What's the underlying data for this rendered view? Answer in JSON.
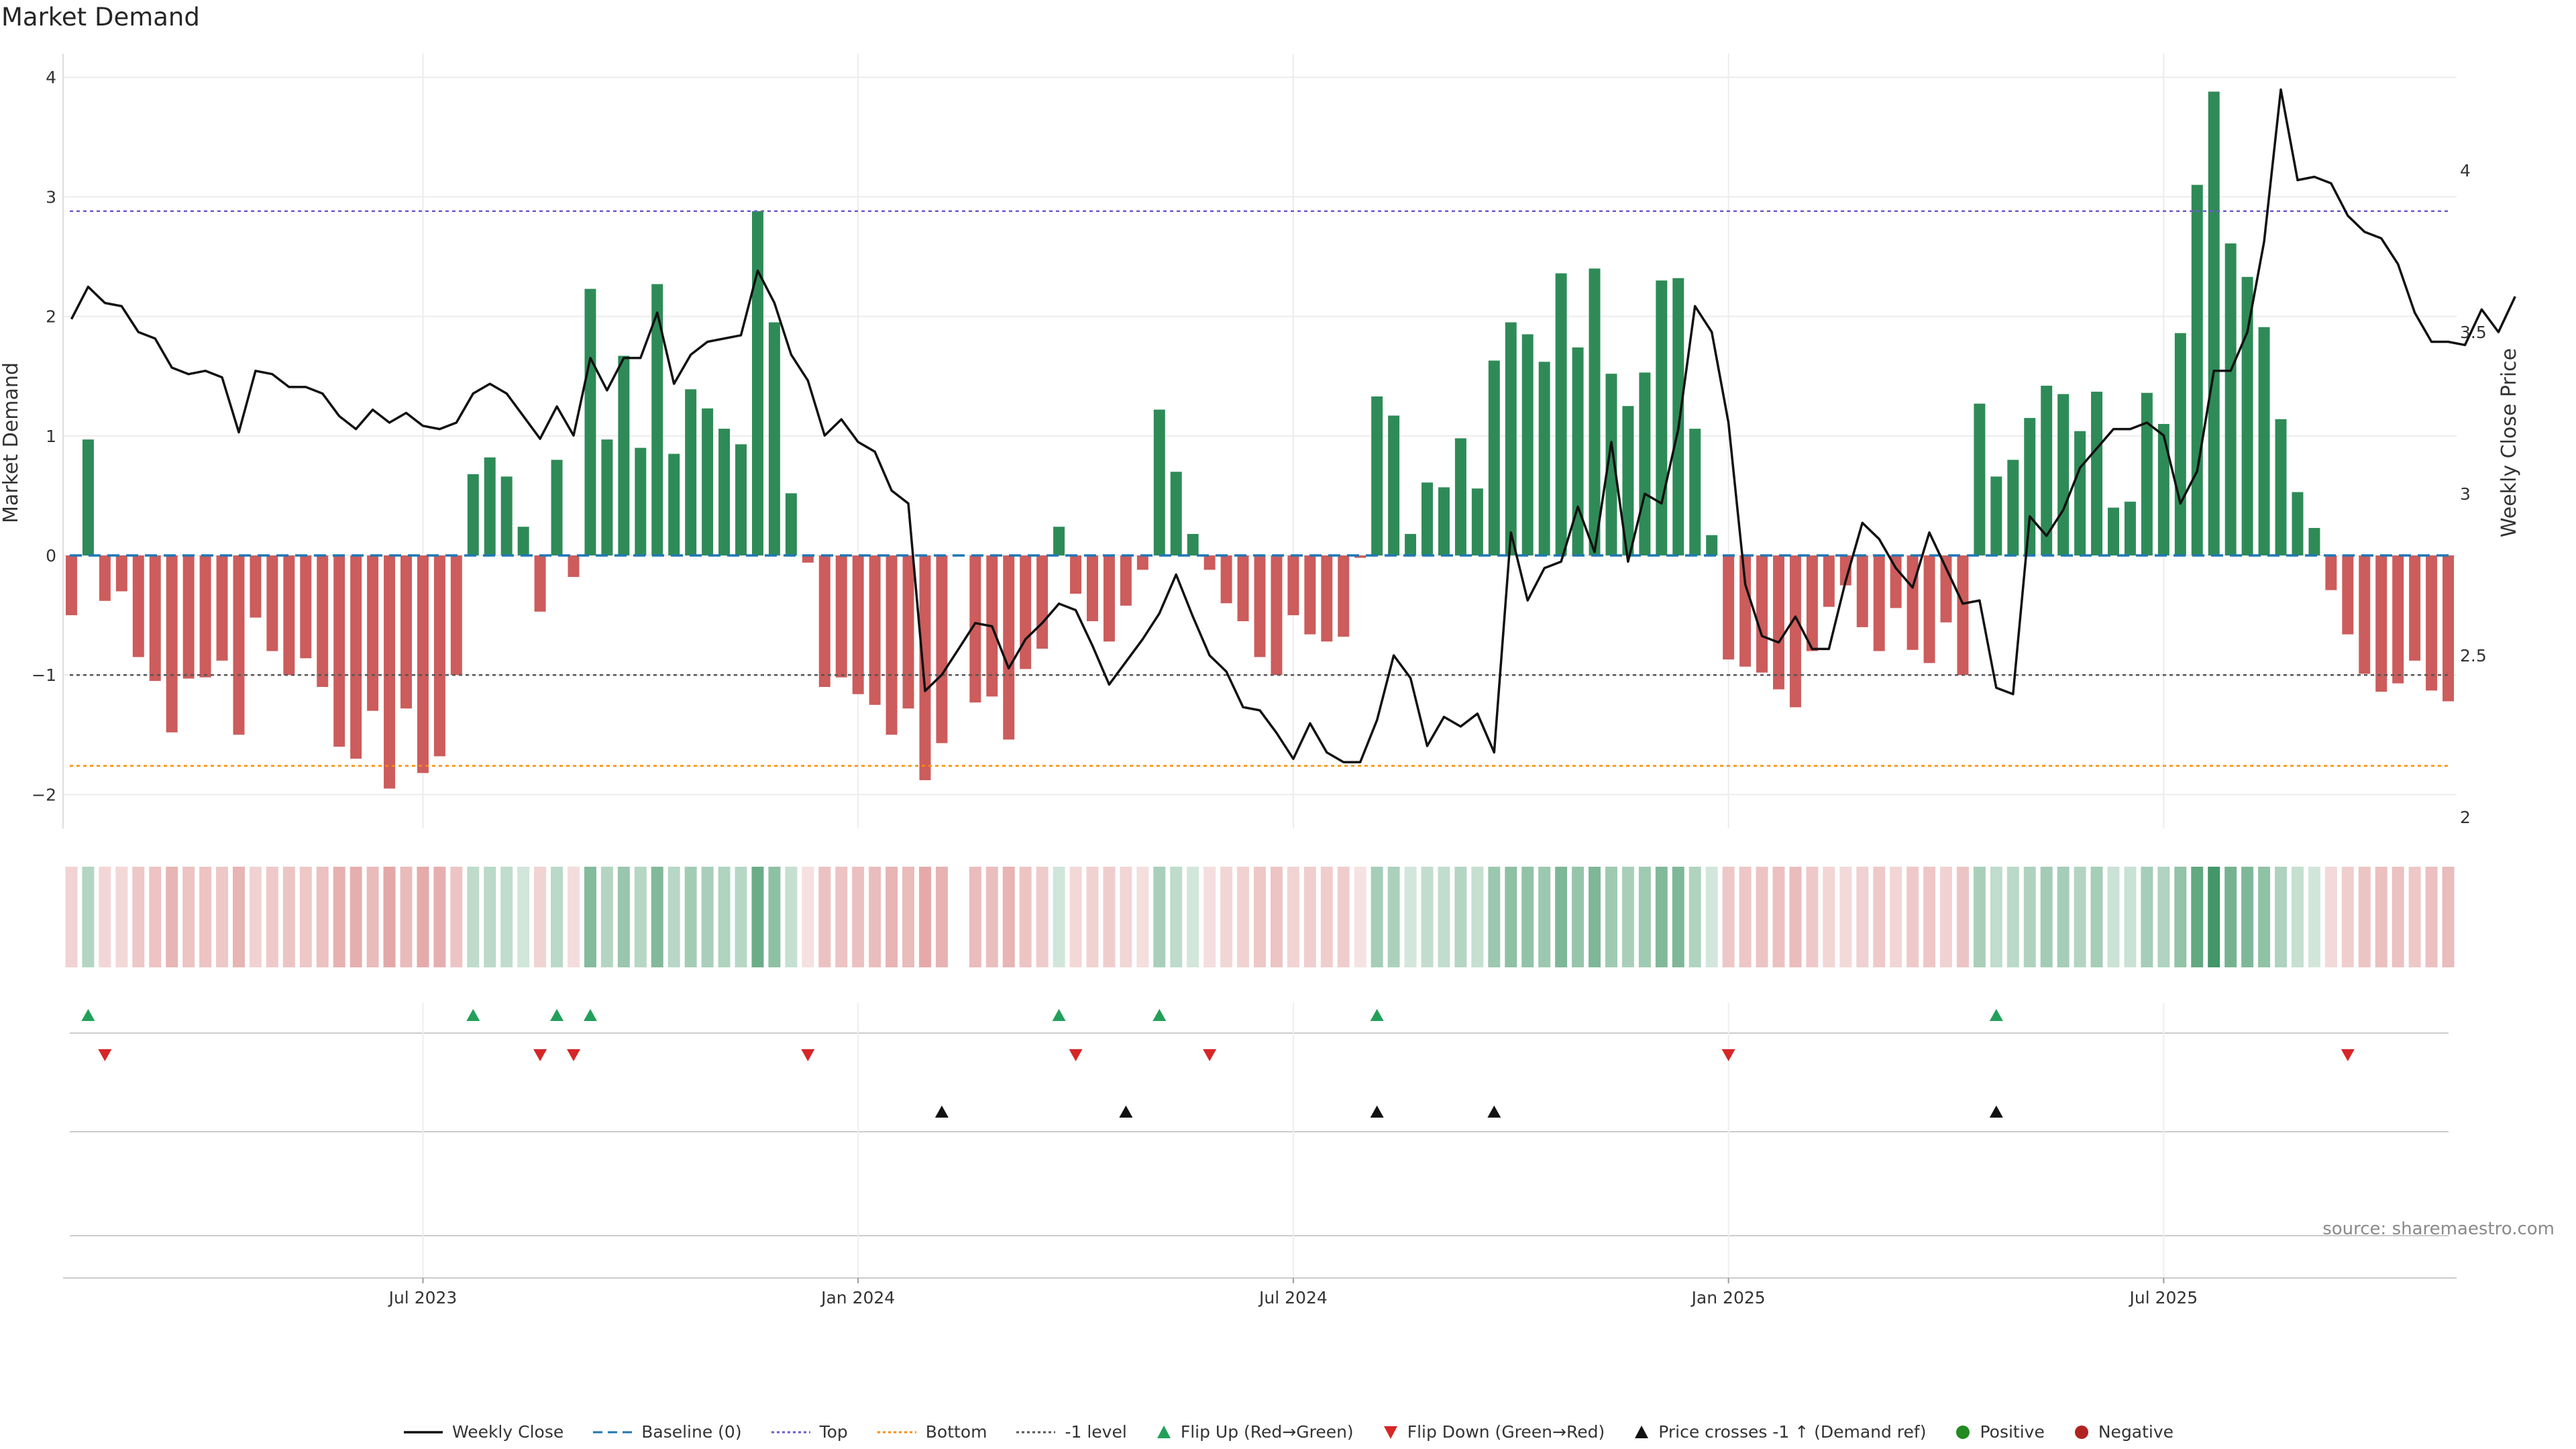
{
  "title": "Market Demand",
  "source": "source: sharemaestro.com",
  "colors": {
    "positive": "#2e8b57",
    "negative": "#cd5c5c",
    "price": "#111111",
    "baseline": "#1f77b4",
    "top": "#6a5acd",
    "bottom": "#ff8c00",
    "minus1": "#555555",
    "flip_up": "#22a05a",
    "flip_down": "#d62728",
    "cross": "#111111",
    "pos_dot": "#228b22",
    "neg_dot": "#b22222"
  },
  "chart_data": {
    "type": "bar",
    "title": "Market Demand",
    "ylabel": "Market Demand",
    "y2label": "Weekly Close Price",
    "ylim": [
      -2.2,
      4.15
    ],
    "y2lim": [
      1.97,
      4.32
    ],
    "yticks": [
      "4",
      "3",
      "2",
      "1",
      "0",
      "−1",
      "−2"
    ],
    "y2ticks": [
      "4",
      "3.5",
      "3",
      "2.5",
      "2"
    ],
    "xticks": [
      "Jul 2023",
      "Jan 2024",
      "Jul 2024",
      "Jan 2025",
      "Jul 2025"
    ],
    "xtick_index": [
      21,
      47,
      73,
      99,
      125
    ],
    "reference_lines": {
      "top": 2.88,
      "bottom": -1.76,
      "minus_one": -1,
      "baseline": 0
    },
    "demand": [
      -0.5,
      0.97,
      -0.38,
      -0.3,
      -0.85,
      -1.05,
      -1.48,
      -1.03,
      -1.02,
      -0.88,
      -1.5,
      -0.52,
      -0.8,
      -1.0,
      -0.86,
      -1.1,
      -1.6,
      -1.7,
      -1.3,
      -1.95,
      -1.28,
      -1.82,
      -1.68,
      -1.0,
      0.68,
      0.82,
      0.66,
      0.24,
      -0.47,
      0.8,
      -0.18,
      2.23,
      0.97,
      1.67,
      0.9,
      2.27,
      0.85,
      1.39,
      1.23,
      1.06,
      0.93,
      2.88,
      1.95,
      0.52,
      -0.06,
      -1.1,
      -1.02,
      -1.16,
      -1.25,
      -1.5,
      -1.28,
      -1.88,
      -1.57,
      0,
      -1.23,
      -1.18,
      -1.54,
      -0.95,
      -0.78,
      0.24,
      -0.32,
      -0.55,
      -0.72,
      -0.42,
      -0.12,
      1.22,
      0.7,
      0.18,
      -0.12,
      -0.4,
      -0.55,
      -0.85,
      -1.0,
      -0.5,
      -0.66,
      -0.72,
      -0.68,
      -0.02,
      1.33,
      1.17,
      0.18,
      0.61,
      0.57,
      0.98,
      0.56,
      1.63,
      1.95,
      1.85,
      1.62,
      2.36,
      1.74,
      2.4,
      1.52,
      1.25,
      1.53,
      2.3,
      2.32,
      1.06,
      0.17,
      -0.87,
      -0.93,
      -0.98,
      -1.12,
      -1.27,
      -0.8,
      -0.43,
      -0.25,
      -0.6,
      -0.8,
      -0.44,
      -0.79,
      -0.9,
      -0.56,
      -1.0,
      1.27,
      0.66,
      0.8,
      1.15,
      1.42,
      1.35,
      1.04,
      1.37,
      0.4,
      0.45,
      1.36,
      1.1,
      1.86,
      3.1,
      3.88,
      2.61,
      2.33,
      1.91,
      1.14,
      0.53,
      0.23,
      -0.29,
      -0.66,
      -0.99,
      -1.14,
      -1.07,
      -0.88,
      -1.13,
      -1.22
    ],
    "price": [
      3.54,
      3.64,
      3.59,
      3.58,
      3.5,
      3.48,
      3.39,
      3.37,
      3.38,
      3.36,
      3.19,
      3.38,
      3.37,
      3.33,
      3.33,
      3.31,
      3.24,
      3.2,
      3.26,
      3.22,
      3.25,
      3.21,
      3.2,
      3.22,
      3.31,
      3.34,
      3.31,
      3.24,
      3.17,
      3.27,
      3.18,
      3.42,
      3.32,
      3.42,
      3.42,
      3.56,
      3.34,
      3.43,
      3.47,
      3.48,
      3.49,
      3.69,
      3.59,
      3.43,
      3.35,
      3.18,
      3.23,
      3.16,
      3.13,
      3.01,
      2.97,
      2.39,
      2.44,
      2.52,
      2.6,
      2.59,
      2.46,
      2.55,
      2.6,
      2.66,
      2.64,
      2.53,
      2.41,
      2.48,
      2.55,
      2.63,
      2.75,
      2.62,
      2.5,
      2.45,
      2.34,
      2.33,
      2.26,
      2.18,
      2.29,
      2.2,
      2.17,
      2.17,
      2.3,
      2.5,
      2.43,
      2.22,
      2.31,
      2.28,
      2.32,
      2.2,
      2.88,
      2.67,
      2.77,
      2.79,
      2.96,
      2.82,
      3.16,
      2.79,
      3.0,
      2.97,
      3.2,
      3.58,
      3.5,
      3.22,
      2.72,
      2.56,
      2.54,
      2.62,
      2.52,
      2.52,
      2.73,
      2.91,
      2.86,
      2.77,
      2.71,
      2.88,
      2.77,
      2.66,
      2.67,
      2.4,
      2.38,
      2.93,
      2.87,
      2.95,
      3.08,
      3.14,
      3.2,
      3.2,
      3.22,
      3.18,
      2.97,
      3.07,
      3.38,
      3.38,
      3.5,
      3.78,
      4.25,
      3.97,
      3.98,
      3.96,
      3.86,
      3.81,
      3.79,
      3.71,
      3.56,
      3.47,
      3.47,
      3.46,
      3.57,
      3.5,
      3.61
    ],
    "flip_up_index": [
      1,
      24,
      29,
      31,
      59,
      65,
      78,
      115
    ],
    "flip_down_index": [
      2,
      28,
      30,
      44,
      60,
      68,
      99,
      136
    ],
    "price_cross_up_index": [
      52,
      63,
      78,
      85,
      115
    ]
  },
  "legend": [
    {
      "label": "Weekly Close",
      "kind": "line",
      "color": "#111111"
    },
    {
      "label": "Baseline (0)",
      "kind": "dash",
      "color": "#1f77b4"
    },
    {
      "label": "Top",
      "kind": "dot",
      "color": "#6a5acd"
    },
    {
      "label": "Bottom",
      "kind": "dot",
      "color": "#ff8c00"
    },
    {
      "label": "-1 level",
      "kind": "dot",
      "color": "#555555"
    },
    {
      "label": "Flip Up (Red→Green)",
      "kind": "up",
      "color": "#22a05a"
    },
    {
      "label": "Flip Down (Green→Red)",
      "kind": "down",
      "color": "#d62728"
    },
    {
      "label": "Price crosses -1 ↑ (Demand ref)",
      "kind": "up",
      "color": "#111111"
    },
    {
      "label": "Positive",
      "kind": "circle",
      "color": "#228b22"
    },
    {
      "label": "Negative",
      "kind": "circle",
      "color": "#b22222"
    }
  ]
}
